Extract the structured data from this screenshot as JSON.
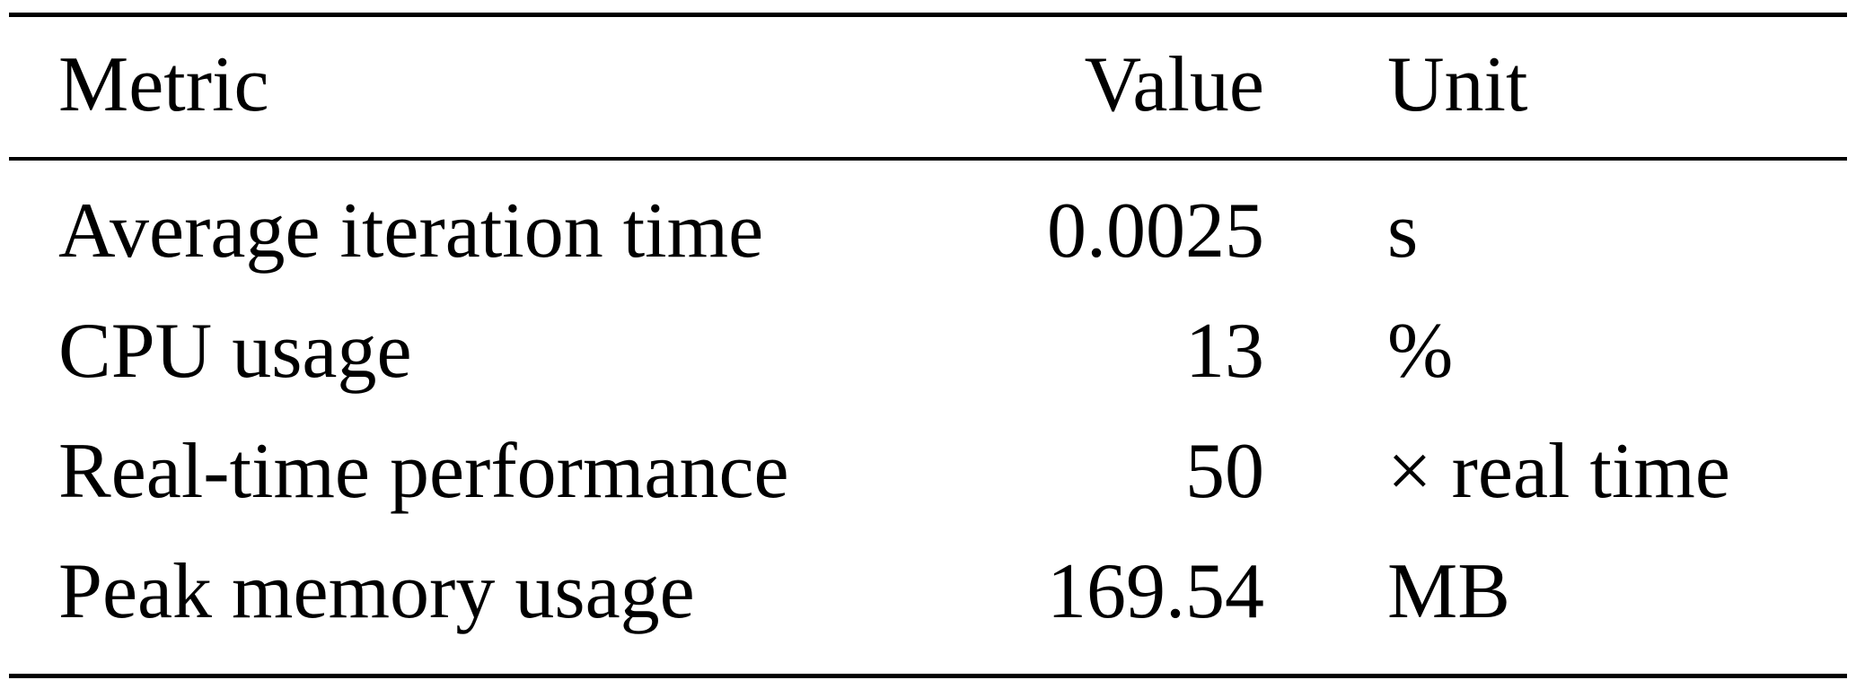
{
  "table": {
    "columns": [
      "Metric",
      "Value",
      "Unit"
    ],
    "rows": [
      {
        "metric": "Average iteration time",
        "value": "0.0025",
        "unit": "s"
      },
      {
        "metric": "CPU usage",
        "value": "13",
        "unit": "%"
      },
      {
        "metric": "Real-time performance",
        "value": "50",
        "unit": "× real time"
      },
      {
        "metric": "Peak memory usage",
        "value": "169.54",
        "unit": "MB"
      }
    ]
  },
  "chart_data": {
    "type": "table",
    "title": "",
    "columns": [
      "Metric",
      "Value",
      "Unit"
    ],
    "rows": [
      [
        "Average iteration time",
        0.0025,
        "s"
      ],
      [
        "CPU usage",
        13,
        "%"
      ],
      [
        "Real-time performance",
        50,
        "× real time"
      ],
      [
        "Peak memory usage",
        169.54,
        "MB"
      ]
    ]
  },
  "colors": {
    "background": "#ffffff",
    "text": "#000000",
    "rule": "#000000"
  }
}
